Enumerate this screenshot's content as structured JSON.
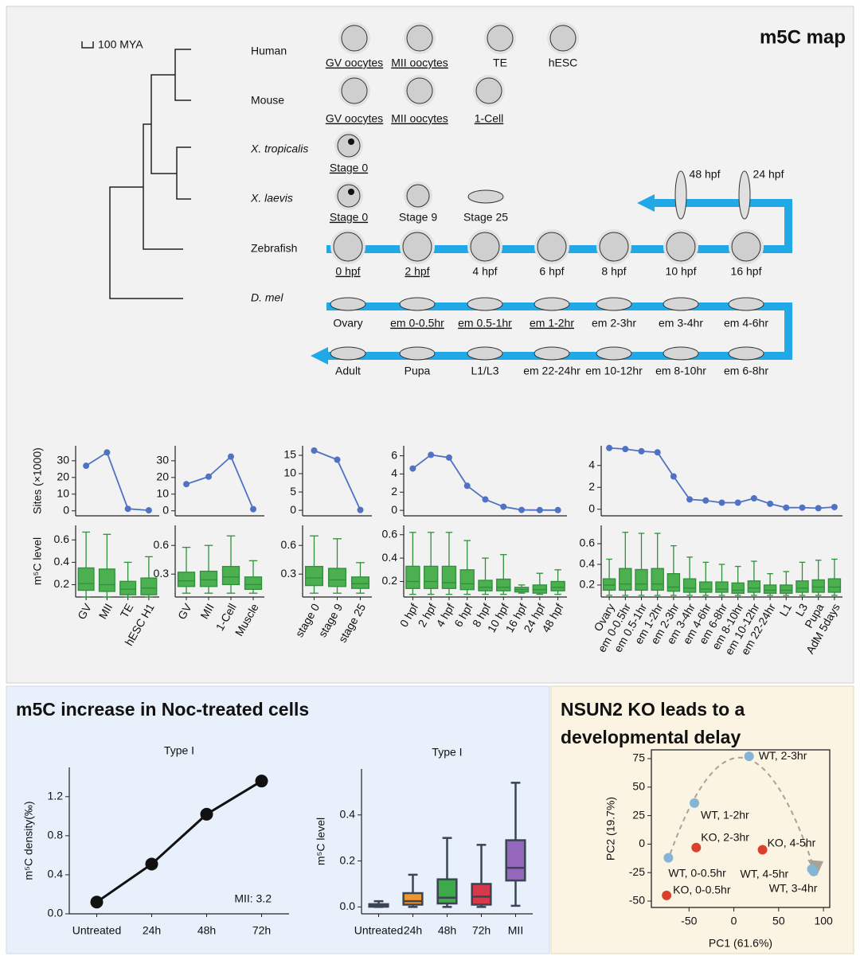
{
  "map": {
    "title": "m5C map",
    "scale": "100 MYA",
    "species": [
      "Human",
      "Mouse",
      "X. tropicalis",
      "X. laevis",
      "Zebrafish",
      "D. mel"
    ],
    "human_stages": [
      "GV oocytes",
      "MII oocytes",
      "TE",
      "hESC"
    ],
    "mouse_stages": [
      "GV oocytes",
      "MII oocytes",
      "1-Cell"
    ],
    "xtropicalis_stages": [
      "Stage 0"
    ],
    "xlaevis_stages": [
      "Stage 0",
      "Stage 9",
      "Stage 25"
    ],
    "zebrafish_stages": [
      "0 hpf",
      "2 hpf",
      "4 hpf",
      "6 hpf",
      "8 hpf",
      "10 hpf",
      "16 hpf",
      "24 hpf",
      "48 hpf"
    ],
    "dmel_stages": [
      "Ovary",
      "em 0-0.5hr",
      "em 0.5-1hr",
      "em 1-2hr",
      "em 2-3hr",
      "em 3-4hr",
      "em 4-6hr",
      "em 6-8hr",
      "em 8-10hr",
      "em 10-12hr",
      "em 22-24hr",
      "L1/L3",
      "Pupa",
      "Adult"
    ]
  },
  "noc_panel": {
    "title": "m5C increase in Noc-treated cells"
  },
  "nsun2_panel": {
    "title_lines": [
      "NSUN2 KO leads to a",
      "developmental delay"
    ]
  },
  "chart_data": [
    {
      "type": "line",
      "ylabel": "Sites (×1000)",
      "color": "#4f72c4",
      "values": [
        27,
        35,
        1.2,
        0.3
      ],
      "ylim": [
        -3,
        39
      ],
      "yticks": [
        0,
        10,
        20,
        30
      ]
    },
    {
      "type": "line",
      "color": "#4f72c4",
      "values": [
        16,
        20.5,
        32.5,
        1
      ],
      "ylim": [
        -3,
        39
      ],
      "yticks": [
        0,
        10,
        20,
        30
      ]
    },
    {
      "type": "line",
      "color": "#4f72c4",
      "values": [
        16.3,
        13.8,
        0.1
      ],
      "ylim": [
        -1.5,
        17.6
      ],
      "yticks": [
        0,
        5,
        10,
        15
      ]
    },
    {
      "type": "line",
      "color": "#4f72c4",
      "values": [
        4.6,
        6.1,
        5.8,
        2.7,
        1.2,
        0.4,
        0.05,
        0.03,
        0.03
      ],
      "ylim": [
        -0.6,
        7.1
      ],
      "yticks": [
        0,
        2,
        4,
        6
      ]
    },
    {
      "type": "line",
      "color": "#4f72c4",
      "values": [
        5.6,
        5.5,
        5.3,
        5.2,
        3.0,
        0.9,
        0.8,
        0.6,
        0.6,
        1.0,
        0.5,
        0.15,
        0.15,
        0.1,
        0.2
      ],
      "ylim": [
        -0.6,
        5.8
      ],
      "yticks": [
        0,
        2,
        4
      ]
    },
    {
      "type": "box",
      "ylabel": "m⁵C level",
      "color": "#4caf50",
      "categories": [
        "GV",
        "MII",
        "TE",
        "hESC H1"
      ],
      "values": [
        [
          0.09,
          0.15,
          0.21,
          0.35,
          0.67
        ],
        [
          0.09,
          0.14,
          0.2,
          0.34,
          0.65
        ],
        [
          0.09,
          0.11,
          0.16,
          0.23,
          0.4
        ],
        [
          0.09,
          0.11,
          0.17,
          0.26,
          0.45
        ]
      ],
      "ylim": [
        0.09,
        0.73
      ],
      "yticks": [
        0.2,
        0.4,
        0.6
      ]
    },
    {
      "type": "box",
      "color": "#4caf50",
      "categories": [
        "GV",
        "MII",
        "1-Cell",
        "Muscle"
      ],
      "values": [
        [
          0.1,
          0.17,
          0.23,
          0.32,
          0.58
        ],
        [
          0.1,
          0.17,
          0.24,
          0.33,
          0.6
        ],
        [
          0.1,
          0.19,
          0.27,
          0.38,
          0.7
        ],
        [
          0.1,
          0.14,
          0.19,
          0.27,
          0.44
        ]
      ],
      "ylim": [
        0.06,
        0.81
      ],
      "yticks": [
        0.3,
        0.6
      ]
    },
    {
      "type": "box",
      "color": "#4caf50",
      "categories": [
        "stage 0",
        "stage 9",
        "stage 25"
      ],
      "values": [
        [
          0.1,
          0.18,
          0.26,
          0.38,
          0.7
        ],
        [
          0.1,
          0.17,
          0.24,
          0.36,
          0.67
        ],
        [
          0.1,
          0.15,
          0.2,
          0.27,
          0.42
        ]
      ],
      "ylim": [
        0.06,
        0.81
      ],
      "yticks": [
        0.3,
        0.6
      ]
    },
    {
      "type": "box",
      "color": "#4caf50",
      "categories": [
        "0 hpf",
        "2 hpf",
        "4 hpf",
        "6 hpf",
        "8 hpf",
        "10 hpf",
        "16 hpf",
        "24 hpf",
        "48 hpf"
      ],
      "values": [
        [
          0.09,
          0.14,
          0.2,
          0.33,
          0.62
        ],
        [
          0.09,
          0.14,
          0.2,
          0.33,
          0.62
        ],
        [
          0.09,
          0.14,
          0.19,
          0.33,
          0.62
        ],
        [
          0.09,
          0.13,
          0.18,
          0.3,
          0.55
        ],
        [
          0.09,
          0.12,
          0.15,
          0.21,
          0.4
        ],
        [
          0.09,
          0.12,
          0.15,
          0.22,
          0.43
        ],
        [
          0.1,
          0.11,
          0.13,
          0.15,
          0.17
        ],
        [
          0.09,
          0.1,
          0.13,
          0.17,
          0.27
        ],
        [
          0.09,
          0.12,
          0.15,
          0.2,
          0.3
        ]
      ],
      "ylim": [
        0.067,
        0.68
      ],
      "yticks": [
        0.2,
        0.4,
        0.6
      ]
    },
    {
      "type": "box",
      "color": "#4caf50",
      "categories": [
        "Ovary",
        "em 0-0.5hr",
        "em 0.5-1hr",
        "em 1-2hr",
        "em 2-3hr",
        "em 3-4hr",
        "em 4-6hr",
        "em 6-8hr",
        "em 8-10hr",
        "em 10-12hr",
        "em 22-24hr",
        "L1",
        "L3",
        "Pupa",
        "AdM 5days"
      ],
      "values": [
        [
          0.1,
          0.15,
          0.2,
          0.26,
          0.45
        ],
        [
          0.1,
          0.15,
          0.21,
          0.36,
          0.71
        ],
        [
          0.1,
          0.15,
          0.21,
          0.35,
          0.7
        ],
        [
          0.1,
          0.15,
          0.21,
          0.36,
          0.7
        ],
        [
          0.1,
          0.14,
          0.18,
          0.31,
          0.58
        ],
        [
          0.1,
          0.13,
          0.17,
          0.26,
          0.47
        ],
        [
          0.1,
          0.13,
          0.16,
          0.23,
          0.42
        ],
        [
          0.1,
          0.13,
          0.16,
          0.23,
          0.4
        ],
        [
          0.1,
          0.12,
          0.15,
          0.22,
          0.38
        ],
        [
          0.1,
          0.13,
          0.17,
          0.24,
          0.43
        ],
        [
          0.1,
          0.12,
          0.15,
          0.2,
          0.31
        ],
        [
          0.1,
          0.12,
          0.15,
          0.2,
          0.33
        ],
        [
          0.1,
          0.13,
          0.17,
          0.24,
          0.42
        ],
        [
          0.1,
          0.13,
          0.18,
          0.25,
          0.44
        ],
        [
          0.1,
          0.13,
          0.18,
          0.26,
          0.45
        ]
      ],
      "ylim": [
        0.084,
        0.777
      ],
      "yticks": [
        0.2,
        0.4,
        0.6
      ]
    },
    {
      "type": "line",
      "title": "Type I",
      "ylabel": "m⁵C density(‰)",
      "annotation": "MII: 3.2",
      "color": "#111111",
      "categories": [
        "Untreated",
        "24h",
        "48h",
        "72h"
      ],
      "values": [
        0.12,
        0.51,
        1.02,
        1.36
      ],
      "ylim": [
        0,
        1.5
      ],
      "yticks": [
        {
          "value": 0,
          "label": "0.0"
        },
        0.4,
        0.8,
        1.2
      ]
    },
    {
      "type": "box",
      "title": "Type I",
      "ylabel": "m⁵C level",
      "colors": [
        "#4c72b0",
        "#f0962e",
        "#3daa4a",
        "#d63a4a",
        "#9467bd"
      ],
      "categories": [
        "Untreated",
        "24h",
        "48h",
        "72h",
        "MII"
      ],
      "values": [
        [
          0,
          0.001,
          0.005,
          0.012,
          0.025
        ],
        [
          0,
          0.01,
          0.025,
          0.06,
          0.14
        ],
        [
          0,
          0.015,
          0.04,
          0.12,
          0.3
        ],
        [
          0,
          0.01,
          0.045,
          0.1,
          0.27
        ],
        [
          0.005,
          0.115,
          0.17,
          0.29,
          0.54
        ]
      ],
      "ylim": [
        -0.03,
        0.6
      ],
      "yticks": [
        {
          "value": 0,
          "label": "0.0"
        },
        0.2,
        0.4
      ]
    },
    {
      "type": "scatter",
      "xlabel": "PC1 (61.6%)",
      "ylabel": "PC2 (19.7%)",
      "points": [
        {
          "label": "WT, 2-3hr",
          "x": 17,
          "y": 77,
          "color": "#86b4d6"
        },
        {
          "label": "WT, 1-2hr",
          "x": -44,
          "y": 36,
          "color": "#86b4d6"
        },
        {
          "label": "KO, 2-3hr",
          "x": -42,
          "y": -3,
          "color": "#d9412f"
        },
        {
          "label": "KO, 4-5hr",
          "x": 32,
          "y": -5,
          "color": "#d9412f"
        },
        {
          "label": "WT, 0-0.5hr",
          "x": -73,
          "y": -12,
          "color": "#86b4d6"
        },
        {
          "label": "KO, 0-0.5hr",
          "x": -75,
          "y": -45,
          "color": "#d9412f"
        },
        {
          "label": "WT, 4-5hr",
          "x": 87,
          "y": -22,
          "color": "#86b4d6"
        },
        {
          "label": "WT, 3-4hr",
          "x": 89,
          "y": -24,
          "color": "#86b4d6"
        }
      ],
      "xlim": [
        -92,
        107
      ],
      "ylim": [
        -55.6,
        82.7
      ],
      "xticks": [
        -50,
        0,
        50,
        100
      ],
      "yticks": [
        -50,
        -25,
        0,
        25,
        50,
        75
      ]
    }
  ]
}
